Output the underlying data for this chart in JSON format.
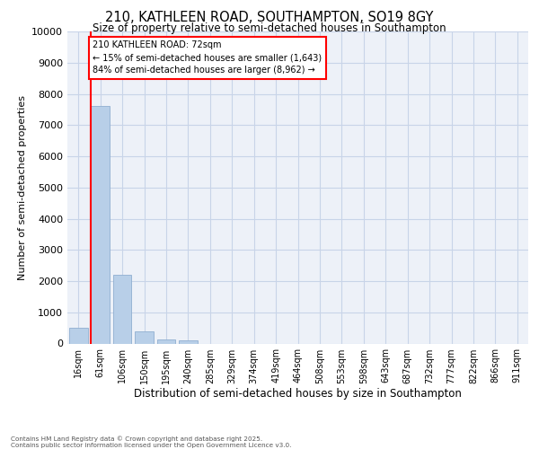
{
  "title_line1": "210, KATHLEEN ROAD, SOUTHAMPTON, SO19 8GY",
  "title_line2": "Size of property relative to semi-detached houses in Southampton",
  "xlabel": "Distribution of semi-detached houses by size in Southampton",
  "ylabel": "Number of semi-detached properties",
  "categories": [
    "16sqm",
    "61sqm",
    "106sqm",
    "150sqm",
    "195sqm",
    "240sqm",
    "285sqm",
    "329sqm",
    "374sqm",
    "419sqm",
    "464sqm",
    "508sqm",
    "553sqm",
    "598sqm",
    "643sqm",
    "687sqm",
    "732sqm",
    "777sqm",
    "822sqm",
    "866sqm",
    "911sqm"
  ],
  "values": [
    500,
    7600,
    2200,
    380,
    130,
    100,
    0,
    0,
    0,
    0,
    0,
    0,
    0,
    0,
    0,
    0,
    0,
    0,
    0,
    0,
    0
  ],
  "bar_color": "#b8cfe8",
  "bar_edge_color": "#90afd0",
  "annotation_title": "210 KATHLEEN ROAD: 72sqm",
  "annotation_line2": "← 15% of semi-detached houses are smaller (1,643)",
  "annotation_line3": "84% of semi-detached houses are larger (8,962) →",
  "ylim_max": 10000,
  "yticks": [
    0,
    1000,
    2000,
    3000,
    4000,
    5000,
    6000,
    7000,
    8000,
    9000,
    10000
  ],
  "grid_color": "#c8d4e8",
  "bg_color": "#edf1f8",
  "footer_line1": "Contains HM Land Registry data © Crown copyright and database right 2025.",
  "footer_line2": "Contains public sector information licensed under the Open Government Licence v3.0."
}
